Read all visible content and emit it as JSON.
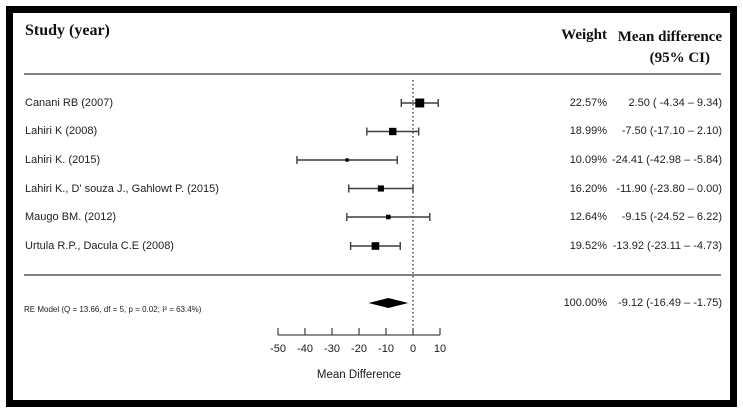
{
  "header": {
    "study_col": "Study (year)",
    "weight_col": "Weight",
    "md_col_line1": "Mean difference",
    "md_col_line2": "(95% CI)"
  },
  "chart_data": {
    "type": "forest_plot",
    "xlabel": "Mean Difference",
    "x_ticks": [
      -50,
      -40,
      -30,
      -20,
      -10,
      0,
      10
    ],
    "xlim": [
      -50,
      10
    ],
    "zero_reference_line": 0,
    "columns": [
      "Study (year)",
      "Weight",
      "Mean difference (95% CI)"
    ],
    "studies": [
      {
        "label": "Canani RB (2007)",
        "weight_pct": 22.57,
        "weight_label": "22.57%",
        "mean": 2.5,
        "ci_low": -4.34,
        "ci_high": 9.34,
        "ci_label": "2.50 ( -4.34 – 9.34)"
      },
      {
        "label": "Lahiri K (2008)",
        "weight_pct": 18.99,
        "weight_label": "18.99%",
        "mean": -7.5,
        "ci_low": -17.1,
        "ci_high": 2.1,
        "ci_label": "-7.50 (-17.10 – 2.10)"
      },
      {
        "label": "Lahiri K. (2015)",
        "weight_pct": 10.09,
        "weight_label": "10.09%",
        "mean": -24.41,
        "ci_low": -42.98,
        "ci_high": -5.84,
        "ci_label": "-24.41 (-42.98 – -5.84)"
      },
      {
        "label": "Lahiri K., D' souza J., Gahlowt P. (2015)",
        "weight_pct": 16.2,
        "weight_label": "16.20%",
        "mean": -11.9,
        "ci_low": -23.8,
        "ci_high": 0.0,
        "ci_label": "-11.90 (-23.80 – 0.00)"
      },
      {
        "label": "Maugo BM. (2012)",
        "weight_pct": 12.64,
        "weight_label": "12.64%",
        "mean": -9.15,
        "ci_low": -24.52,
        "ci_high": 6.22,
        "ci_label": "-9.15 (-24.52 – 6.22)"
      },
      {
        "label": "Urtula R.P., Dacula C.E (2008)",
        "weight_pct": 19.52,
        "weight_label": "19.52%",
        "mean": -13.92,
        "ci_low": -23.11,
        "ci_high": -4.73,
        "ci_label": "-13.92 (-23.11 – -4.73)"
      }
    ],
    "summary": {
      "label": "RE Model (Q = 13.66, df = 5, p = 0.02; I² = 63.4%)",
      "weight_label": "100.00%",
      "mean": -9.12,
      "ci_low": -16.49,
      "ci_high": -1.75,
      "ci_label": "-9.12 (-16.49 – -1.75)"
    }
  },
  "colors": {
    "marker": "#000000",
    "ci_line": "#3d3d3d",
    "separator": "#808080",
    "axis": "#4a4a4a",
    "text": "#1a1a1a",
    "border": "#000000"
  }
}
